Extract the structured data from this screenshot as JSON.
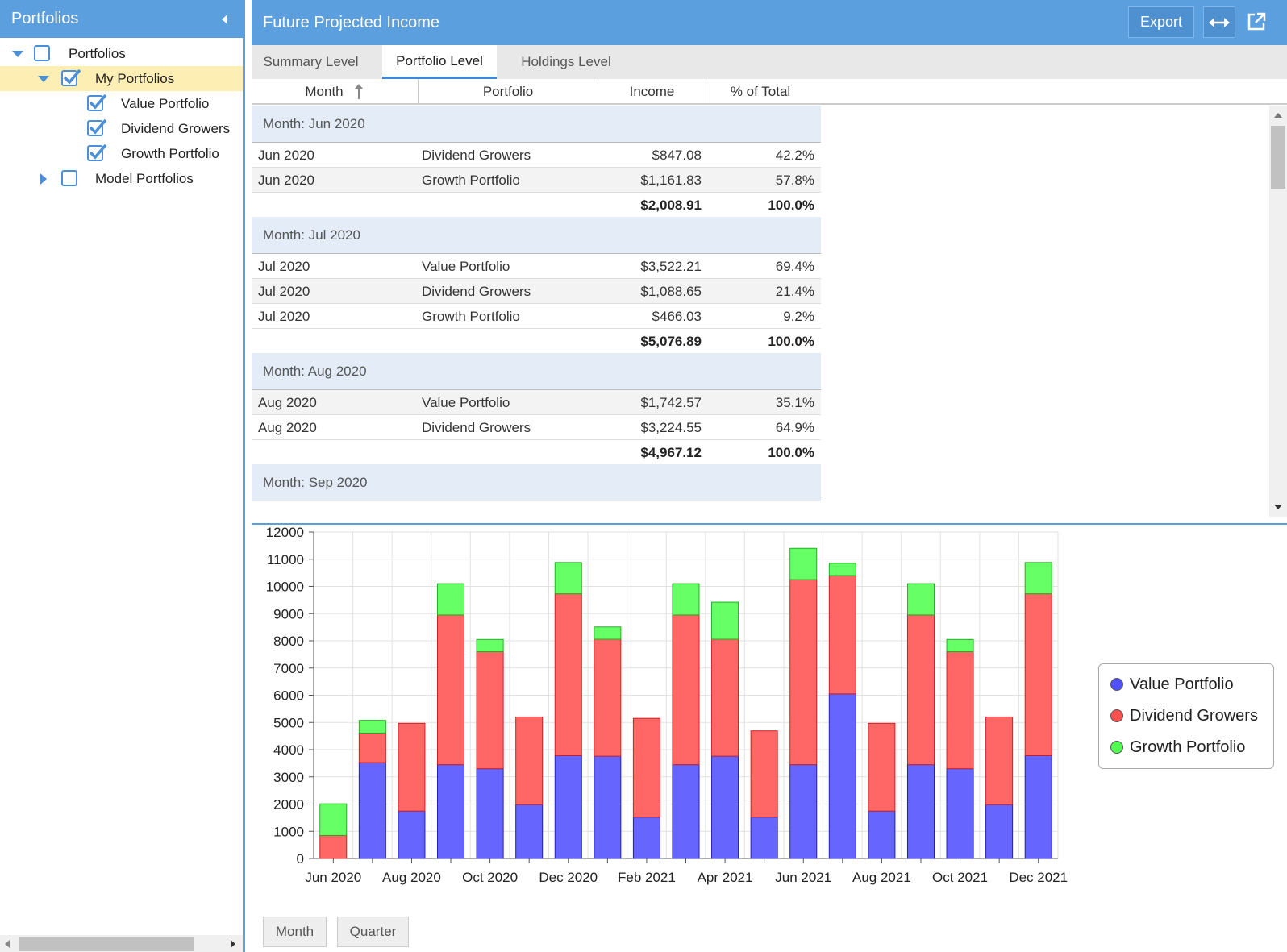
{
  "left_panel": {
    "title": "Portfolios",
    "tree": [
      {
        "label": "Portfolios",
        "checked": false,
        "expanded": true
      },
      {
        "label": "My Portfolios",
        "checked": true,
        "expanded": true
      },
      {
        "label": "Value Portfolio",
        "checked": true
      },
      {
        "label": "Dividend Growers",
        "checked": true
      },
      {
        "label": "Growth Portfolio",
        "checked": true
      },
      {
        "label": "Model Portfolios",
        "checked": false,
        "expanded": false
      }
    ]
  },
  "header": {
    "title": "Future Projected Income",
    "export_label": "Export"
  },
  "tabs": [
    "Summary Level",
    "Portfolio Level",
    "Holdings Level"
  ],
  "active_tab": "Portfolio Level",
  "columns": [
    "Month",
    "Portfolio",
    "Income",
    "% of Total"
  ],
  "sort": {
    "column": "Month",
    "direction": "ascending"
  },
  "groups": [
    {
      "label": "Month: Jun 2020",
      "rows": [
        {
          "month": "Jun 2020",
          "portfolio": "Dividend Growers",
          "income": "$847.08",
          "pct": "42.2%"
        },
        {
          "month": "Jun 2020",
          "portfolio": "Growth Portfolio",
          "income": "$1,161.83",
          "pct": "57.8%"
        }
      ],
      "total_income": "$2,008.91",
      "total_pct": "100.0%"
    },
    {
      "label": "Month: Jul 2020",
      "rows": [
        {
          "month": "Jul 2020",
          "portfolio": "Value Portfolio",
          "income": "$3,522.21",
          "pct": "69.4%"
        },
        {
          "month": "Jul 2020",
          "portfolio": "Dividend Growers",
          "income": "$1,088.65",
          "pct": "21.4%"
        },
        {
          "month": "Jul 2020",
          "portfolio": "Growth Portfolio",
          "income": "$466.03",
          "pct": "9.2%"
        }
      ],
      "total_income": "$5,076.89",
      "total_pct": "100.0%"
    },
    {
      "label": "Month: Aug 2020",
      "rows": [
        {
          "month": "Aug 2020",
          "portfolio": "Value Portfolio",
          "income": "$1,742.57",
          "pct": "35.1%"
        },
        {
          "month": "Aug 2020",
          "portfolio": "Dividend Growers",
          "income": "$3,224.55",
          "pct": "64.9%"
        }
      ],
      "total_income": "$4,967.12",
      "total_pct": "100.0%"
    },
    {
      "label": "Month: Sep 2020",
      "rows": [],
      "total_income": "",
      "total_pct": ""
    }
  ],
  "chart_data": {
    "type": "bar",
    "stacked": true,
    "categories": [
      "Jun 2020",
      "Jul 2020",
      "Aug 2020",
      "Sep 2020",
      "Oct 2020",
      "Nov 2020",
      "Dec 2020",
      "Jan 2021",
      "Feb 2021",
      "Mar 2021",
      "Apr 2021",
      "May 2021",
      "Jun 2021",
      "Jul 2021",
      "Aug 2021",
      "Sep 2021",
      "Oct 2021",
      "Nov 2021",
      "Dec 2021"
    ],
    "x_tick_labels": [
      "Jun 2020",
      "Aug 2020",
      "Oct 2020",
      "Dec 2020",
      "Feb 2021",
      "Apr 2021",
      "Jun 2021",
      "Aug 2021",
      "Oct 2021",
      "Dec 2021"
    ],
    "series": [
      {
        "name": "Value Portfolio",
        "color": "#6666ff",
        "values": [
          0,
          3522,
          1743,
          3450,
          3300,
          1980,
          3780,
          3760,
          1520,
          3450,
          3760,
          1520,
          3450,
          6050,
          1743,
          3450,
          3300,
          1980,
          3780
        ]
      },
      {
        "name": "Dividend Growers",
        "color": "#ff6666",
        "values": [
          847,
          1089,
          3225,
          5500,
          4300,
          3220,
          5950,
          4300,
          3630,
          5500,
          4300,
          3170,
          6800,
          4350,
          3225,
          5500,
          4300,
          3220,
          5950
        ]
      },
      {
        "name": "Growth Portfolio",
        "color": "#66ff66",
        "values": [
          1162,
          466,
          0,
          1150,
          450,
          0,
          1150,
          450,
          0,
          1150,
          1360,
          0,
          1150,
          450,
          0,
          1150,
          450,
          0,
          1150
        ]
      }
    ],
    "ylim": [
      0,
      12000
    ],
    "y_ticks": [
      0,
      1000,
      2000,
      3000,
      4000,
      5000,
      6000,
      7000,
      8000,
      9000,
      10000,
      11000,
      12000
    ],
    "grid": true,
    "legend": "right"
  },
  "bottom_buttons": [
    "Month",
    "Quarter"
  ]
}
